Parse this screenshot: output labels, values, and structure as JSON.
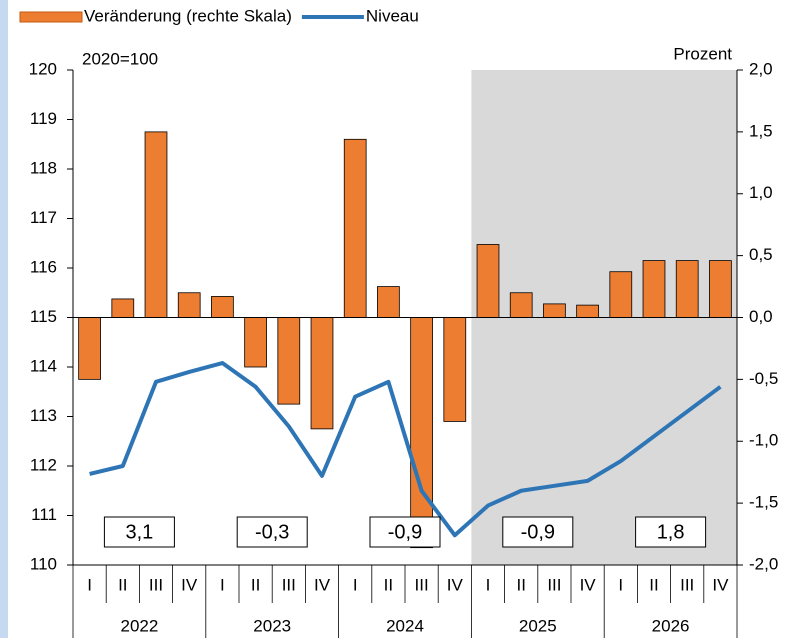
{
  "chart_data": {
    "type": "bar_line_dual_axis",
    "label_left": "2020=100",
    "label_right": "Prozent",
    "categories": [
      "I",
      "II",
      "III",
      "IV",
      "I",
      "II",
      "III",
      "IV",
      "I",
      "II",
      "III",
      "IV",
      "I",
      "II",
      "III",
      "IV",
      "I",
      "II",
      "III",
      "IV"
    ],
    "years": [
      "2022",
      "2023",
      "2024",
      "2025",
      "2026"
    ],
    "forecast_from": "2025",
    "series": [
      {
        "name": "Veränderung (rechte Skala)",
        "type": "bar",
        "axis": "y2",
        "color": "#ed7d31",
        "values": [
          -0.5,
          0.15,
          1.5,
          0.2,
          0.17,
          -0.4,
          -0.7,
          -0.9,
          1.44,
          0.25,
          -1.86,
          -0.84,
          0.59,
          0.2,
          0.11,
          0.1,
          0.37,
          0.46,
          0.46,
          0.46
        ]
      },
      {
        "name": "Niveau",
        "type": "line",
        "axis": "y",
        "color": "#2e75b6",
        "values": [
          111.84,
          112.0,
          113.7,
          113.9,
          114.08,
          113.6,
          112.8,
          111.8,
          113.4,
          113.7,
          111.5,
          110.6,
          111.2,
          111.5,
          111.6,
          111.7,
          112.1,
          112.6,
          113.1,
          113.6
        ]
      }
    ],
    "annotations": [
      "3,1",
      "-0,3",
      "-0,9",
      "-0,9",
      "1,8"
    ],
    "ylim": [
      110,
      120
    ],
    "yticks": [
      110,
      111,
      112,
      113,
      114,
      115,
      116,
      117,
      118,
      119,
      120
    ],
    "y2lim": [
      -2,
      2
    ],
    "y2ticks": [
      {
        "value": -2,
        "label": "-2,0"
      },
      {
        "value": -1.5,
        "label": "-1,5"
      },
      {
        "value": -1,
        "label": "-1,0"
      },
      {
        "value": -0.5,
        "label": "-0,5"
      },
      {
        "value": 0,
        "label": "0,0"
      },
      {
        "value": 0.5,
        "label": "0,5"
      },
      {
        "value": 1,
        "label": "1,0"
      },
      {
        "value": 1.5,
        "label": "1,5"
      },
      {
        "value": 2,
        "label": "2,0"
      }
    ]
  }
}
